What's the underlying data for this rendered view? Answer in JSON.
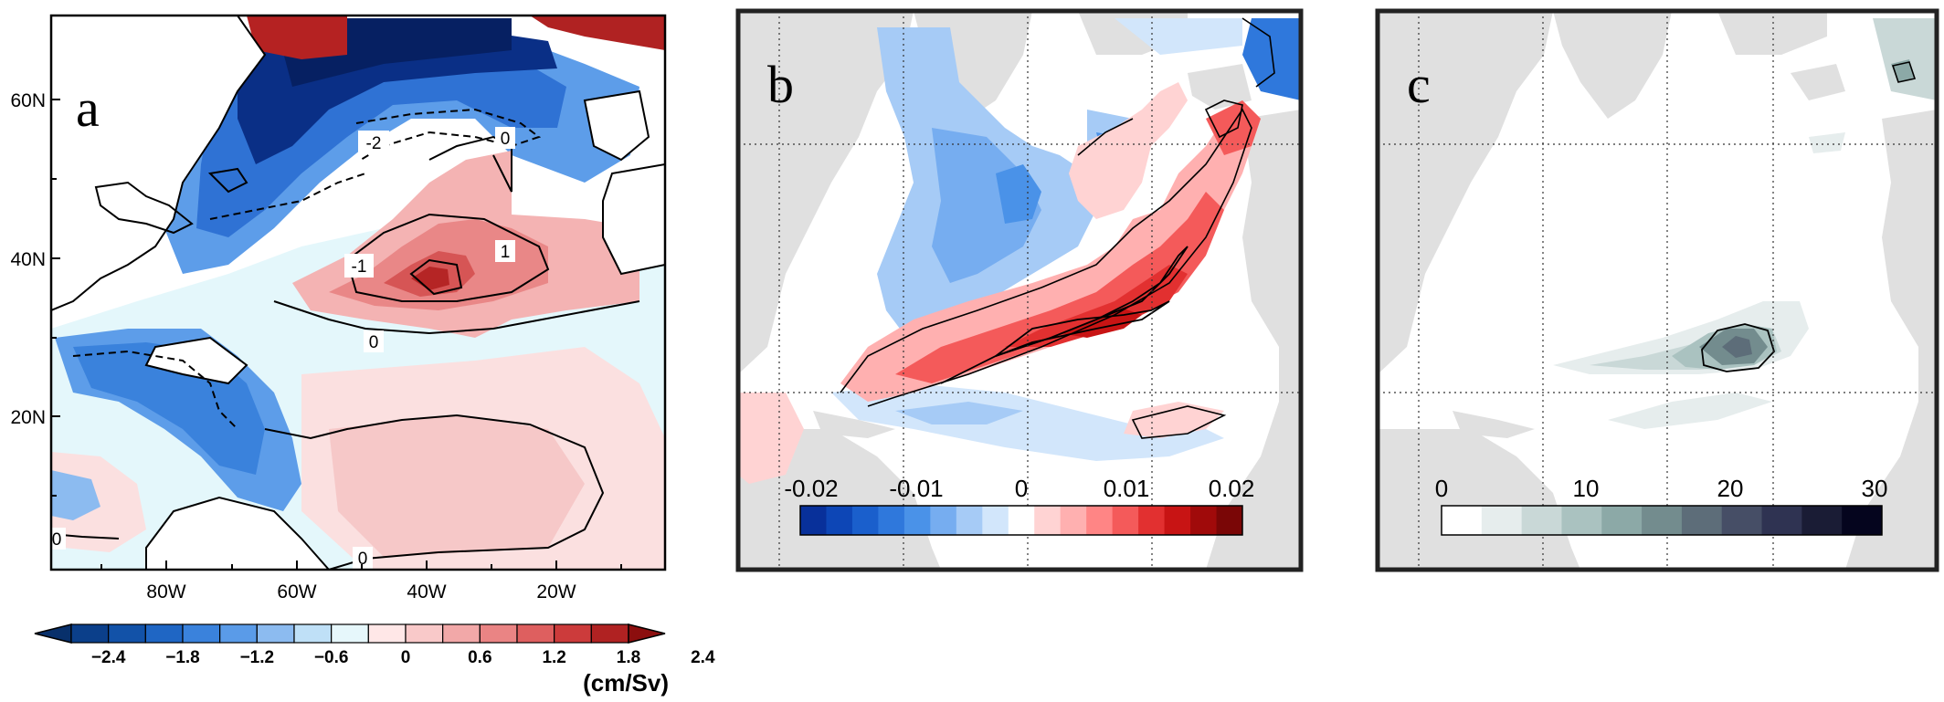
{
  "panels": [
    {
      "label": "a",
      "lat_ticks": [
        "60N",
        "40N",
        "20N"
      ],
      "lon_ticks": [
        "80W",
        "60W",
        "40W",
        "20W"
      ],
      "contour_labels": [
        "-2",
        "-1",
        "0",
        "1",
        "0",
        "0",
        "0"
      ],
      "colorbar": {
        "ticks": [
          "-2.4",
          "-1.8",
          "-1.2",
          "-0.6",
          "0",
          "0.6",
          "1.2",
          "1.8",
          "2.4"
        ],
        "unit": "(cm/Sv)",
        "colors": [
          "#08306b",
          "#0b3f8a",
          "#1252a8",
          "#1f66c4",
          "#3a82dc",
          "#5a9be8",
          "#8cbbf0",
          "#bfe0f7",
          "#e6f7fb",
          "#ffe7e7",
          "#f9c9c9",
          "#f2a8a8",
          "#ea8484",
          "#de5f5f",
          "#cc3b3b",
          "#b02222",
          "#8c0e0e"
        ]
      }
    },
    {
      "label": "b",
      "colorbar": {
        "ticks": [
          "-0.02",
          "-0.01",
          "0",
          "0.01",
          "0.02"
        ],
        "colors": [
          "#08309a",
          "#0d46b6",
          "#1a5fcc",
          "#2f78dc",
          "#4a92e8",
          "#76adf0",
          "#a6cbf6",
          "#d2e6fb",
          "#ffffff",
          "#ffd3d3",
          "#ffb0b0",
          "#ff8585",
          "#f45a5a",
          "#e23030",
          "#c81414",
          "#a00a0a",
          "#7a0606"
        ]
      }
    },
    {
      "label": "c",
      "colorbar": {
        "ticks": [
          "0",
          "10",
          "20",
          "30"
        ],
        "colors": [
          "#ffffff",
          "#e6eded",
          "#c9d8d7",
          "#aac2c0",
          "#8ca9a7",
          "#738c8e",
          "#5d6d79",
          "#464e66",
          "#2f3352",
          "#1a1c35",
          "#05051e"
        ]
      }
    }
  ]
}
